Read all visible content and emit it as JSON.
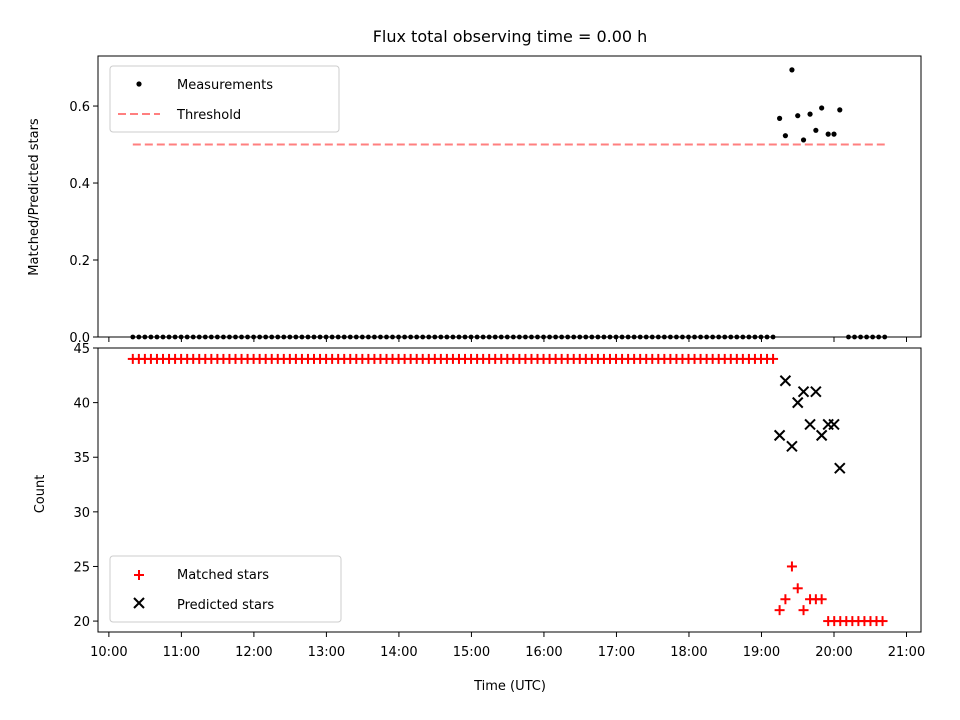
{
  "chart_data": [
    {
      "type": "scatter",
      "title": "Flux total observing time = 0.00 h",
      "xlabel": "",
      "ylabel": "Matched/Predicted stars",
      "xlim": [
        9.85,
        21.2
      ],
      "ylim": [
        0.0,
        0.73
      ],
      "yticks": [
        0.0,
        0.2,
        0.4,
        0.6
      ],
      "ytick_labels": [
        "0.0",
        "0.2",
        "0.4",
        "0.6"
      ],
      "xticks": [
        10,
        11,
        12,
        13,
        14,
        15,
        16,
        17,
        18,
        19,
        20,
        21
      ],
      "legend_position": "upper-left",
      "threshold": {
        "name": "Threshold",
        "value": 0.5,
        "x_range": [
          10.33,
          20.7
        ],
        "color": "#ff7f7f"
      },
      "measurements": {
        "name": "Measurements",
        "color": "#000000",
        "zero_series": {
          "x_start": 10.33,
          "x_end": 19.17,
          "step": 0.0833
        },
        "zero_series_late": {
          "x_start": 20.2,
          "x_end": 20.7,
          "step": 0.0833
        },
        "points": [
          {
            "x": 19.25,
            "y": 0.568
          },
          {
            "x": 19.33,
            "y": 0.523
          },
          {
            "x": 19.42,
            "y": 0.694
          },
          {
            "x": 19.5,
            "y": 0.575
          },
          {
            "x": 19.58,
            "y": 0.512
          },
          {
            "x": 19.67,
            "y": 0.579
          },
          {
            "x": 19.75,
            "y": 0.537
          },
          {
            "x": 19.83,
            "y": 0.595
          },
          {
            "x": 19.92,
            "y": 0.527
          },
          {
            "x": 20.0,
            "y": 0.527
          },
          {
            "x": 20.08,
            "y": 0.59
          }
        ]
      }
    },
    {
      "type": "scatter",
      "title": "",
      "xlabel": "Time (UTC)",
      "ylabel": "Count",
      "xlim": [
        9.85,
        21.2
      ],
      "ylim": [
        19.0,
        45.0
      ],
      "yticks": [
        20,
        25,
        30,
        35,
        40,
        45
      ],
      "ytick_labels": [
        "20",
        "25",
        "30",
        "35",
        "40",
        "45"
      ],
      "xticks": [
        10,
        11,
        12,
        13,
        14,
        15,
        16,
        17,
        18,
        19,
        20,
        21
      ],
      "xtick_labels": [
        "10:00",
        "11:00",
        "12:00",
        "13:00",
        "14:00",
        "15:00",
        "16:00",
        "17:00",
        "18:00",
        "19:00",
        "20:00",
        "21:00"
      ],
      "legend_position": "lower-left",
      "series": [
        {
          "name": "Matched stars",
          "marker": "plus",
          "color": "#ff0000",
          "flat_run": {
            "x_start": 10.33,
            "x_end": 19.17,
            "step": 0.0833,
            "y": 44
          },
          "flat_run_late": {
            "x_start": 19.92,
            "x_end": 20.7,
            "step": 0.0833,
            "y": 20
          },
          "points": [
            {
              "x": 19.25,
              "y": 21
            },
            {
              "x": 19.33,
              "y": 22
            },
            {
              "x": 19.42,
              "y": 25
            },
            {
              "x": 19.5,
              "y": 23
            },
            {
              "x": 19.58,
              "y": 21
            },
            {
              "x": 19.67,
              "y": 22
            },
            {
              "x": 19.75,
              "y": 22
            },
            {
              "x": 19.83,
              "y": 22
            }
          ]
        },
        {
          "name": "Predicted stars",
          "marker": "x",
          "color": "#000000",
          "points": [
            {
              "x": 19.25,
              "y": 37
            },
            {
              "x": 19.33,
              "y": 42
            },
            {
              "x": 19.42,
              "y": 36
            },
            {
              "x": 19.5,
              "y": 40
            },
            {
              "x": 19.58,
              "y": 41
            },
            {
              "x": 19.67,
              "y": 38
            },
            {
              "x": 19.75,
              "y": 41
            },
            {
              "x": 19.83,
              "y": 37
            },
            {
              "x": 19.92,
              "y": 38
            },
            {
              "x": 20.0,
              "y": 38
            },
            {
              "x": 20.08,
              "y": 34
            }
          ]
        }
      ]
    }
  ]
}
